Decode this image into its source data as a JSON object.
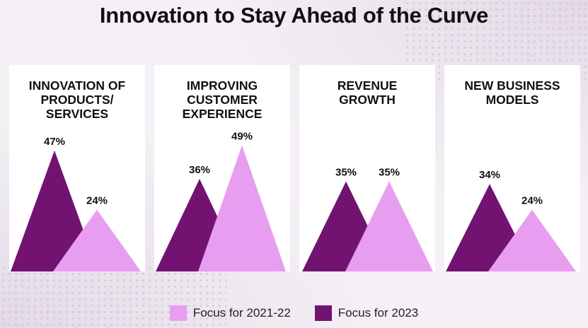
{
  "title": "Innovation to Stay Ahead of the Curve",
  "colors": {
    "focus_2021_22": "#e89ef0",
    "focus_2023": "#721372"
  },
  "legend": {
    "items": [
      {
        "label": "Focus for 2021-22",
        "color": "#e89ef0"
      },
      {
        "label": "Focus for 2023",
        "color": "#721372"
      }
    ]
  },
  "chart_data": {
    "type": "area",
    "title": "Innovation to Stay Ahead of the Curve",
    "value_unit": "%",
    "ylim": [
      0,
      55
    ],
    "series": [
      {
        "name": "Focus for 2021-22",
        "values": [
          24,
          49,
          35,
          24
        ]
      },
      {
        "name": "Focus for 2023",
        "values": [
          47,
          36,
          35,
          34
        ]
      }
    ],
    "categories": [
      "INNOVATION OF\nPRODUCTS/\nSERVICES",
      "IMPROVING\nCUSTOMER\nEXPERIENCE",
      "REVENUE\nGROWTH",
      "NEW BUSINESS\nMODELS"
    ],
    "labels": {
      "focus_2021_22": [
        "24%",
        "49%",
        "35%",
        "24%"
      ],
      "focus_2023": [
        "47%",
        "36%",
        "35%",
        "34%"
      ]
    }
  }
}
